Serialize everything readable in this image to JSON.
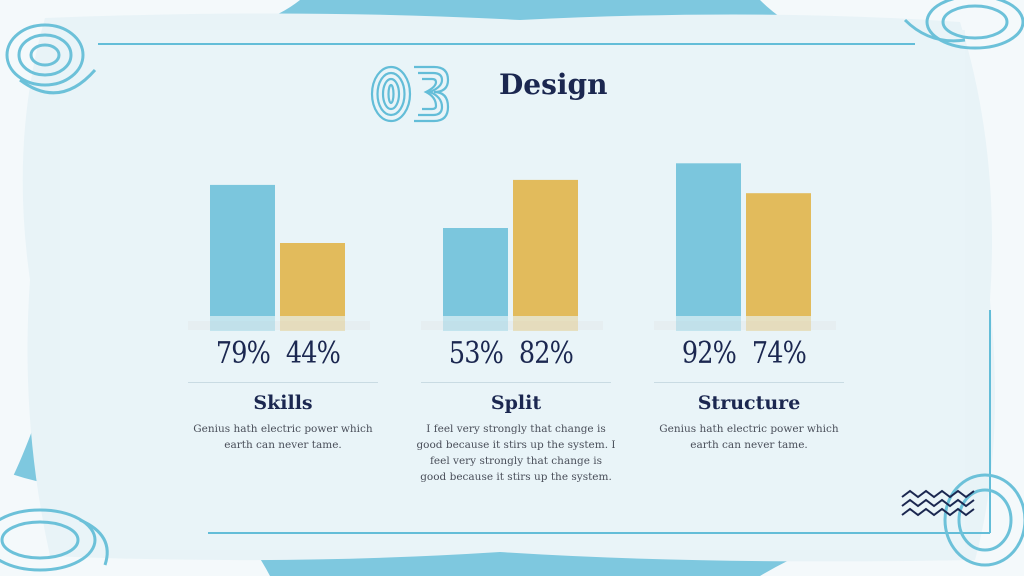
{
  "header": {
    "number": "03",
    "title": "Design"
  },
  "colors": {
    "blue": "#7bc6dd",
    "gold": "#e2bb5c",
    "navy": "#1b2750",
    "frame": "#63bdd8"
  },
  "chart_data": [
    {
      "type": "bar",
      "title": "Skills",
      "categories": [
        "1",
        "2"
      ],
      "values": [
        79,
        44
      ],
      "labels": [
        "79%",
        "44%"
      ],
      "ylim": [
        0,
        100
      ],
      "description": "Genius hath electric power which earth can never tame."
    },
    {
      "type": "bar",
      "title": "Split",
      "categories": [
        "1",
        "2"
      ],
      "values": [
        53,
        82
      ],
      "labels": [
        "53%",
        "82%"
      ],
      "ylim": [
        0,
        100
      ],
      "description": "I feel very strongly that change is good because it stirs up the system. I feel very strongly that change is good because it stirs up the system."
    },
    {
      "type": "bar",
      "title": "Structure",
      "categories": [
        "1",
        "2"
      ],
      "values": [
        92,
        74
      ],
      "labels": [
        "92%",
        "74%"
      ],
      "ylim": [
        0,
        100
      ],
      "description": "Genius hath electric power which earth can never tame."
    }
  ]
}
